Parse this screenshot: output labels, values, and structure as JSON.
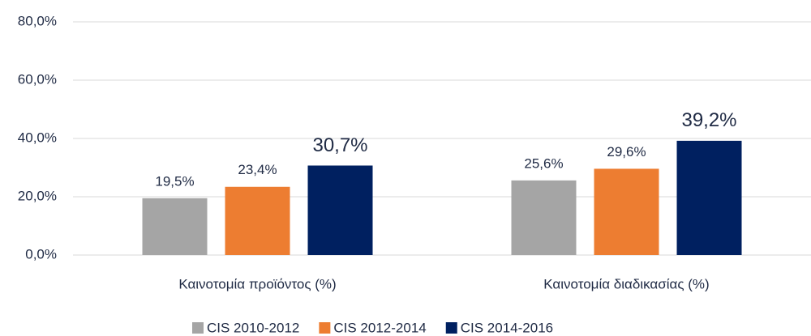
{
  "chart_data": {
    "type": "bar",
    "categories": [
      "Καινοτομία προϊόντος (%)",
      "Καινοτομία διαδικασίας (%)"
    ],
    "series": [
      {
        "name": "CIS 2010-2012",
        "color": "#a5a5a5",
        "values": [
          19.5,
          25.6
        ],
        "value_labels": [
          "19,5%",
          "25,6%"
        ]
      },
      {
        "name": "CIS 2012-2014",
        "color": "#ed7d31",
        "values": [
          23.4,
          29.6
        ],
        "value_labels": [
          "23,4%",
          "29,6%"
        ]
      },
      {
        "name": "CIS 2014-2016",
        "color": "#002060",
        "values": [
          30.7,
          39.2
        ],
        "value_labels": [
          "30,7%",
          "39,2%"
        ]
      }
    ],
    "ylim": [
      0,
      80
    ],
    "yticks": [
      {
        "value": 0,
        "label": "0,0%"
      },
      {
        "value": 20,
        "label": "20,0%"
      },
      {
        "value": 40,
        "label": "40,0%"
      },
      {
        "value": 60,
        "label": "60,0%"
      },
      {
        "value": 80,
        "label": "80,0%"
      }
    ],
    "grid": true,
    "legend": "bottom"
  }
}
